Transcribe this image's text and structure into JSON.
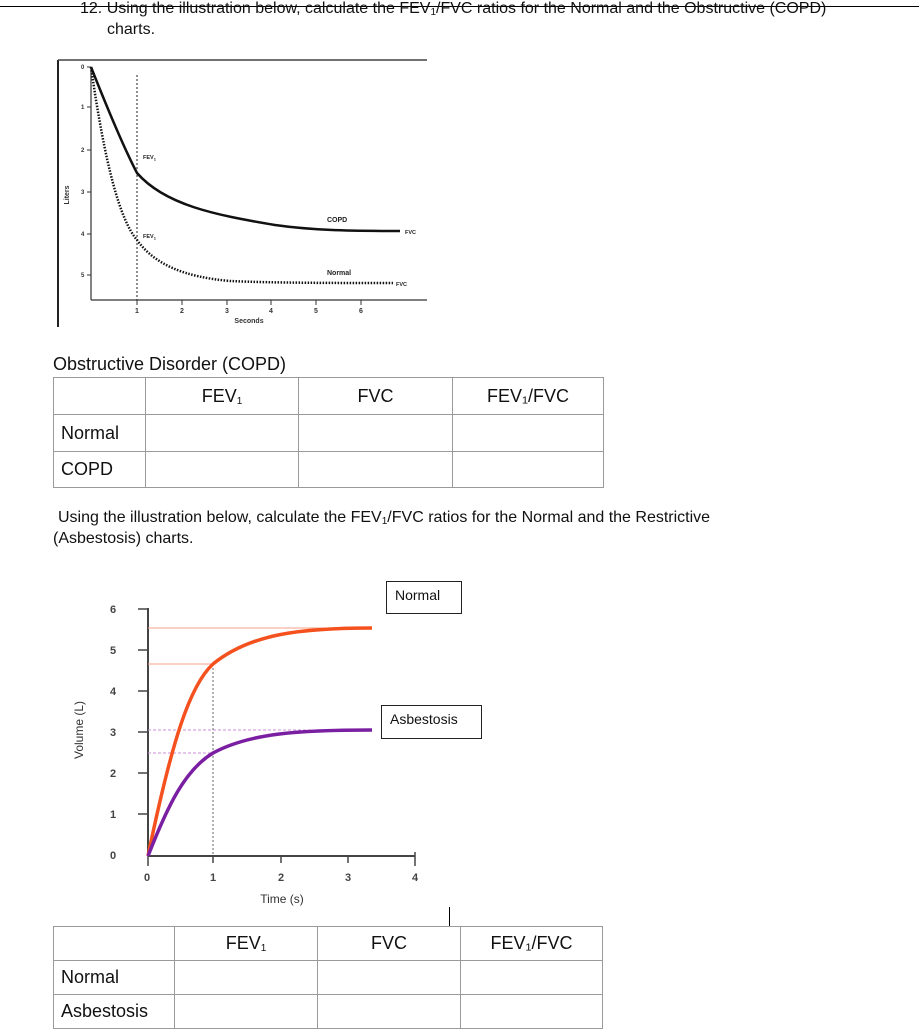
{
  "question": {
    "number": "12.",
    "line1": "Using the illustration below, calculate the FEV",
    "line1_after": "/FVC ratios for the Normal and the Obstructive (COPD)",
    "line2": "charts."
  },
  "chart1": {
    "ylabel": "Liters",
    "xlabel": "Seconds",
    "yticks": [
      "0",
      "1",
      "2",
      "3",
      "4",
      "5"
    ],
    "xticks": [
      "1",
      "2",
      "3",
      "4",
      "5",
      "6"
    ],
    "fev_label": "FEV",
    "curve_copd": "COPD",
    "curve_normal": "Normal",
    "fvc_label": "FVC"
  },
  "table1": {
    "title": "Obstructive Disorder (COPD)",
    "headers": [
      "",
      "FEV",
      "FVC",
      "FEV₁/FVC"
    ],
    "rows": [
      "Normal",
      "COPD"
    ]
  },
  "question2": {
    "line1a": "Using the illustration below, calculate the FEV",
    "line1b": "/FVC ratios for the Normal and the Restrictive",
    "line2": "(Asbestosis) charts."
  },
  "chart2": {
    "ylabel": "Volume (L)",
    "xlabel": "Time (s)",
    "yticks": [
      "0",
      "1",
      "2",
      "3",
      "4",
      "5",
      "6"
    ],
    "xticks": [
      "0",
      "1",
      "2",
      "3",
      "4"
    ],
    "label_normal": "Normal",
    "label_asbestosis": "Asbestosis",
    "colors": {
      "normal": "#f4511e",
      "asbestosis": "#7b1fa2"
    }
  },
  "table2": {
    "headers": [
      "",
      "FEV",
      "FVC",
      "FEV₁/FVC"
    ],
    "rows": [
      "Normal",
      "Asbestosis"
    ]
  },
  "chart_data": [
    {
      "type": "line",
      "xlabel": "Seconds",
      "ylabel": "Liters",
      "xlim": [
        0,
        7
      ],
      "ylim": [
        0,
        5
      ],
      "y_axis_inverted": true,
      "series": [
        {
          "name": "COPD",
          "x": [
            0,
            0.5,
            1,
            2,
            3,
            4,
            5,
            6,
            7
          ],
          "y": [
            0,
            1.3,
            2.5,
            3.1,
            3.4,
            3.6,
            3.65,
            3.7,
            3.7
          ]
        },
        {
          "name": "Normal",
          "x": [
            0,
            0.5,
            1,
            1.5,
            2,
            3,
            4,
            5,
            6,
            7
          ],
          "y": [
            0,
            2.8,
            3.9,
            4.5,
            4.7,
            4.8,
            4.82,
            4.83,
            4.83,
            4.83
          ]
        }
      ],
      "annotations": [
        "FEV₁",
        "FEV₁",
        "FVC",
        "FVC"
      ]
    },
    {
      "type": "line",
      "xlabel": "Time (s)",
      "ylabel": "Volume (L)",
      "xlim": [
        0,
        4
      ],
      "ylim": [
        0,
        6
      ],
      "series": [
        {
          "name": "Normal",
          "x": [
            0,
            0.25,
            0.5,
            1,
            1.5,
            2,
            2.5,
            3,
            3.4
          ],
          "y": [
            0,
            2.4,
            3.6,
            4.7,
            5.2,
            5.4,
            5.5,
            5.55,
            5.55
          ]
        },
        {
          "name": "Asbestosis",
          "x": [
            0,
            0.25,
            0.5,
            1,
            1.5,
            2,
            2.5,
            3,
            3.4
          ],
          "y": [
            0,
            1.3,
            1.9,
            2.5,
            2.8,
            2.95,
            3.0,
            3.02,
            3.02
          ]
        }
      ]
    }
  ]
}
